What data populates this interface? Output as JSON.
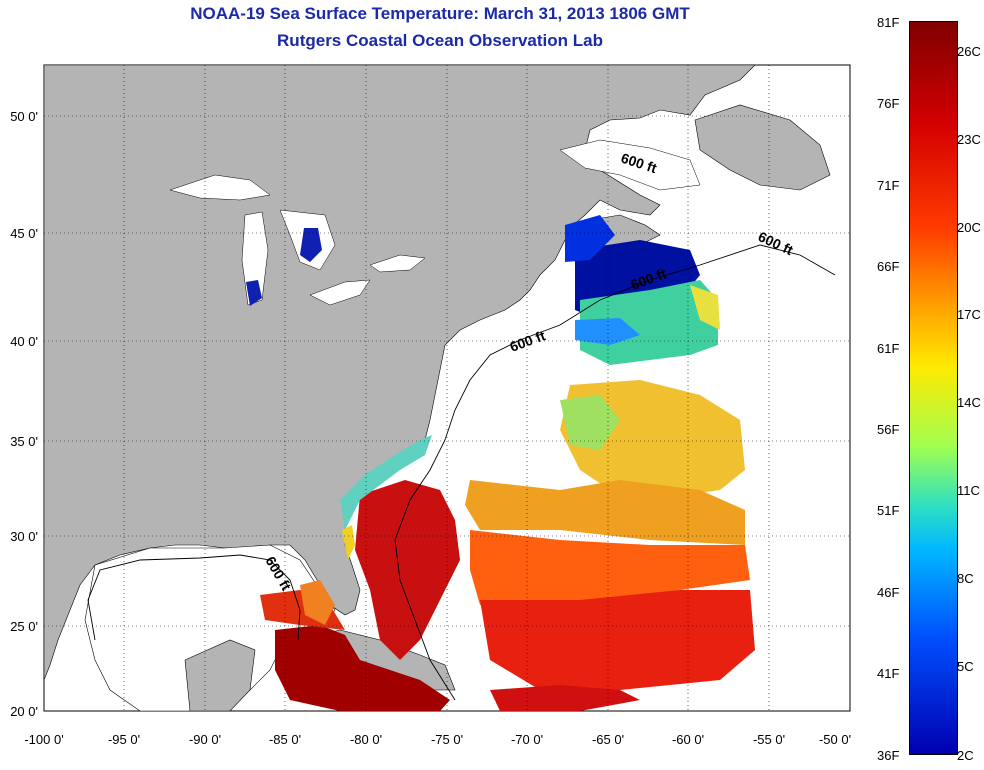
{
  "title": {
    "line1": "NOAA-19 Sea Surface Temperature:  March 31, 2013 1806 GMT",
    "line2": "Rutgers Coastal Ocean Observation Lab"
  },
  "map": {
    "lon_ticks": [
      "-100 0'",
      "-95 0'",
      "-90 0'",
      "-85 0'",
      "-80 0'",
      "-75 0'",
      "-70 0'",
      "-65 0'",
      "-60 0'",
      "-55 0'",
      "-50 0'"
    ],
    "lat_ticks": [
      "50 0'",
      "45 0'",
      "40 0'",
      "35 0'",
      "30 0'",
      "25 0'",
      "20 0'"
    ],
    "isobath_labels": [
      "600 ft",
      "600 ft",
      "600 ft",
      "600 ft",
      "600 ft"
    ],
    "colors": {
      "land": "#b4b4b4",
      "ocean": "#ffffff"
    }
  },
  "colorbar": {
    "fahrenheit": [
      "81F",
      "76F",
      "71F",
      "66F",
      "61F",
      "56F",
      "51F",
      "46F",
      "41F",
      "36F"
    ],
    "celsius": [
      "26C",
      "23C",
      "20C",
      "17C",
      "14C",
      "11C",
      "8C",
      "5C",
      "2C"
    ]
  }
}
